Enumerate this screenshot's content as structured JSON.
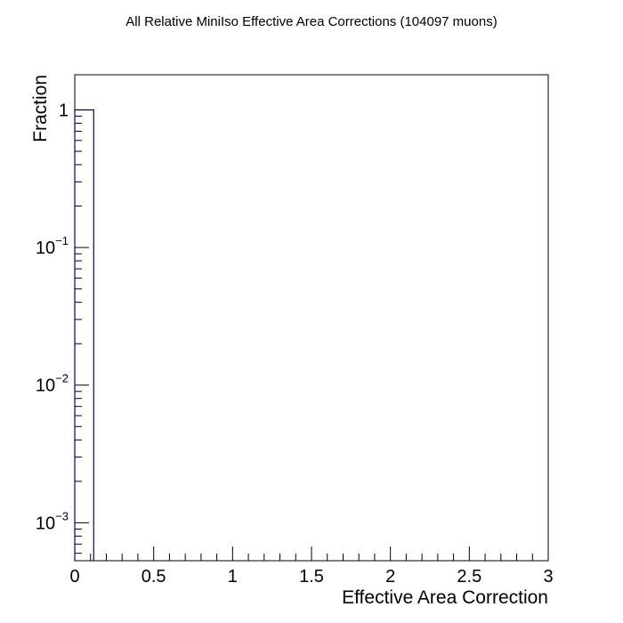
{
  "chart_data": {
    "type": "bar",
    "title": "All Relative MiniIso Effective Area Corrections (104097 muons)",
    "xlabel": "Effective Area Correction",
    "ylabel": "Fraction",
    "xlim": [
      0,
      3
    ],
    "ylim": [
      0.00053,
      1.8
    ],
    "yscale": "log",
    "grid": false,
    "x_tick_labels": [
      "0",
      "0.5",
      "1",
      "1.5",
      "2",
      "2.5",
      "3"
    ],
    "x_tick_values": [
      0,
      0.5,
      1,
      1.5,
      2,
      2.5,
      3
    ],
    "y_tick_labels": [
      {
        "base": "1",
        "exp": ""
      },
      {
        "base": "10",
        "exp": "−1"
      },
      {
        "base": "10",
        "exp": "−2"
      },
      {
        "base": "10",
        "exp": "−3"
      }
    ],
    "y_tick_values": [
      1,
      0.1,
      0.01,
      0.001
    ],
    "bins": [
      {
        "x_low": 0.0,
        "x_high": 0.12,
        "value": 1.0
      }
    ],
    "colors": {
      "histogram_line": "#000080",
      "frame": "#000000"
    }
  }
}
